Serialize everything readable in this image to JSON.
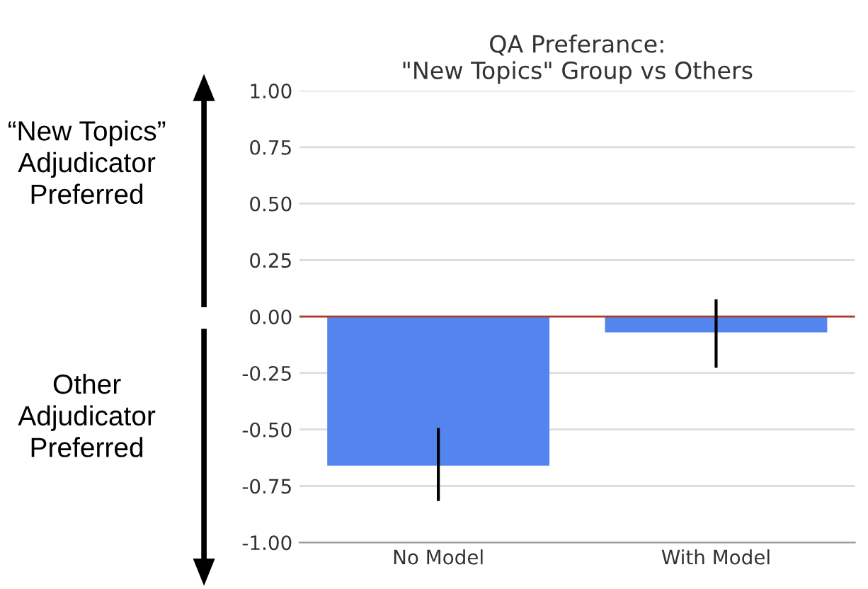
{
  "chart_data": {
    "type": "bar",
    "title": "QA Preferance:\n\"New Topics\" Group vs Others",
    "categories": [
      "No Model",
      "With Model"
    ],
    "values": [
      -0.66,
      -0.07
    ],
    "errors": [
      [
        -0.81,
        -0.5
      ],
      [
        -0.22,
        0.07
      ]
    ],
    "color": "#5484ee",
    "ylim": [
      -1.0,
      1.0
    ],
    "yticks": [
      {
        "value": 1,
        "label": "1.00"
      },
      {
        "value": 0.75,
        "label": "0.75"
      },
      {
        "value": 0.5,
        "label": "0.50"
      },
      {
        "value": 0.25,
        "label": "0.25"
      },
      {
        "value": 0,
        "label": "0.00"
      },
      {
        "value": -0.25,
        "label": "-0.25"
      },
      {
        "value": -0.5,
        "label": "-0.50"
      },
      {
        "value": -0.75,
        "label": "-0.75"
      },
      {
        "value": -1,
        "label": "-1.00"
      }
    ],
    "grid": "y",
    "ref_lines": [
      {
        "axis": "y",
        "value": 0,
        "color": "#b03a2e"
      }
    ],
    "annotations": [
      "“New Topics”\nAdjudicator\nPreferred",
      "Other\nAdjudicator\nPreferred"
    ]
  }
}
